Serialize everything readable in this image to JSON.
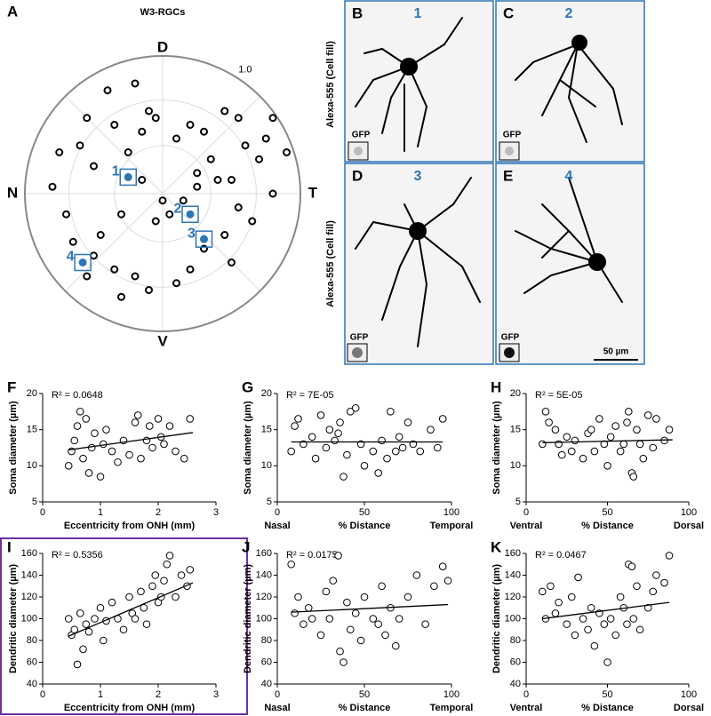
{
  "chart_data": [
    {
      "type": "polar_scatter",
      "panel": "A",
      "title": "W3-RGCs",
      "directions": {
        "top": "D",
        "bottom": "V",
        "left": "N",
        "right": "T"
      },
      "rgrid": [
        0.35,
        0.68
      ],
      "rticks": [
        {
          "value": 1,
          "label": "1.0"
        }
      ],
      "color": "#000000",
      "x": [
        -0.4,
        -0.2,
        -0.1,
        -0.55,
        -0.35,
        -0.6,
        -0.75,
        -0.5,
        -0.25,
        -0.15,
        -0.05,
        0.1,
        0.2,
        0.3,
        0.45,
        0.55,
        0.6,
        0.7,
        0.75,
        0.4,
        0.35,
        0.25,
        0.15,
        0.05,
        -0.05,
        -0.3,
        -0.45,
        -0.7,
        -0.8,
        -0.65,
        -0.5,
        -0.35,
        -0.2,
        -0.1,
        0.1,
        0.2,
        0.3,
        0.45,
        0.5,
        0.55,
        0.65,
        0.8,
        0.9,
        0.8,
        0.25,
        -0.15,
        0.0,
        -0.55,
        -0.3,
        0.5
      ],
      "y": [
        0.75,
        0.8,
        0.6,
        0.55,
        0.5,
        0.35,
        0.3,
        0.2,
        0.3,
        0.45,
        0.55,
        0.4,
        0.5,
        0.45,
        0.6,
        0.55,
        0.35,
        0.25,
        0.4,
        0.1,
        0.25,
        0.15,
        -0.05,
        -0.15,
        -0.2,
        -0.15,
        -0.3,
        -0.15,
        0.05,
        -0.35,
        -0.45,
        -0.55,
        -0.6,
        -0.7,
        -0.65,
        -0.55,
        -0.4,
        -0.3,
        -0.5,
        -0.1,
        -0.2,
        0.0,
        0.3,
        0.55,
        0.05,
        0.1,
        -0.05,
        -0.6,
        -0.75,
        0.1
      ],
      "highlighted": {
        "labels": [
          "1",
          "2",
          "3",
          "4"
        ],
        "x": [
          -0.25,
          0.2,
          0.3,
          -0.58
        ],
        "y": [
          0.12,
          -0.15,
          -0.33,
          -0.5
        ],
        "color": "#2e75b6"
      }
    },
    {
      "type": "scatter",
      "panel": "F",
      "annotation": "R² = 0.0648",
      "x_label": "Eccentricity from ONH (mm)",
      "y_label": "Soma diameter (µm)",
      "xlim": [
        0,
        3
      ],
      "xticks": [
        0,
        1,
        2,
        3
      ],
      "ylim": [
        5,
        20
      ],
      "yticks": [
        5,
        10,
        15,
        20
      ],
      "color": "#000000",
      "x": [
        0.45,
        0.5,
        0.55,
        0.6,
        0.65,
        0.7,
        0.75,
        0.8,
        0.85,
        0.9,
        1.0,
        1.05,
        1.1,
        1.2,
        1.3,
        1.4,
        1.5,
        1.6,
        1.65,
        1.7,
        1.8,
        1.85,
        1.9,
        2.0,
        2.05,
        2.1,
        2.2,
        2.3,
        2.45,
        2.55
      ],
      "values": [
        10,
        12,
        13.5,
        15.5,
        17.5,
        11,
        16.5,
        9,
        12.5,
        14.5,
        8.5,
        13,
        15,
        12,
        10.5,
        13.5,
        11.5,
        16,
        17,
        11,
        13.5,
        15.5,
        12.5,
        16.5,
        14,
        13,
        15.5,
        12,
        11,
        16.5
      ],
      "trend": {
        "x": [
          0.45,
          2.6
        ],
        "y": [
          12.2,
          14.6
        ]
      }
    },
    {
      "type": "scatter",
      "panel": "G",
      "annotation": "R² = 7E-05",
      "x_label": "% Distance",
      "x_end_labels": [
        "Nasal",
        "Temporal"
      ],
      "y_label": "Soma diameter (µm)",
      "xlim": [
        0,
        100
      ],
      "xticks": [
        0,
        50,
        100
      ],
      "ylim": [
        5,
        20
      ],
      "yticks": [
        5,
        10,
        15,
        20
      ],
      "color": "#000000",
      "x": [
        8,
        10,
        12,
        15,
        20,
        22,
        25,
        28,
        30,
        33,
        35,
        36,
        38,
        40,
        42,
        45,
        48,
        50,
        55,
        58,
        60,
        63,
        65,
        68,
        70,
        72,
        75,
        78,
        82,
        88,
        92,
        95
      ],
      "values": [
        12,
        15.5,
        16.5,
        13,
        14,
        11,
        17,
        12.5,
        15,
        13.5,
        14.5,
        16,
        8.5,
        11.5,
        17.5,
        18,
        13,
        10,
        12,
        9,
        13.5,
        11,
        17.5,
        12,
        14,
        12.5,
        16,
        13,
        12,
        15,
        12.5,
        16.5
      ],
      "trend": {
        "x": [
          8,
          95
        ],
        "y": [
          13.3,
          13.3
        ]
      }
    },
    {
      "type": "scatter",
      "panel": "H",
      "annotation": "R² = 5E-05",
      "x_label": "% Distance",
      "x_end_labels": [
        "Ventral",
        "Dorsal"
      ],
      "y_label": "Soma diameter (µm)",
      "xlim": [
        0,
        100
      ],
      "xticks": [
        0,
        50,
        100
      ],
      "ylim": [
        5,
        20
      ],
      "yticks": [
        5,
        10,
        15,
        20
      ],
      "color": "#000000",
      "x": [
        10,
        12,
        14,
        18,
        20,
        22,
        25,
        28,
        30,
        35,
        38,
        40,
        42,
        45,
        48,
        50,
        52,
        55,
        58,
        60,
        62,
        63,
        65,
        66,
        68,
        70,
        72,
        75,
        78,
        80,
        85,
        88
      ],
      "values": [
        13,
        17.5,
        16,
        15,
        13,
        11.5,
        14,
        12,
        13.5,
        11,
        14.5,
        15,
        12,
        16.5,
        13,
        10,
        14,
        15.5,
        12,
        13,
        16,
        17.5,
        9,
        8.5,
        15,
        13,
        11,
        17,
        12.5,
        16.5,
        13.5,
        15
      ],
      "trend": {
        "x": [
          10,
          90
        ],
        "y": [
          13.2,
          13.6
        ]
      }
    },
    {
      "type": "scatter",
      "panel": "I",
      "annotation": "R² = 0.5356",
      "x_label": "Eccentricity from ONH (mm)",
      "y_label": "Dendritic diameter (µm)",
      "xlim": [
        0,
        3
      ],
      "xticks": [
        0,
        1,
        2,
        3
      ],
      "ylim": [
        40,
        160
      ],
      "yticks": [
        40,
        60,
        80,
        100,
        120,
        140,
        160
      ],
      "color": "#000000",
      "x": [
        0.45,
        0.5,
        0.55,
        0.6,
        0.65,
        0.7,
        0.75,
        0.8,
        0.9,
        1.0,
        1.05,
        1.1,
        1.2,
        1.3,
        1.4,
        1.5,
        1.55,
        1.6,
        1.7,
        1.75,
        1.8,
        1.9,
        1.95,
        2.0,
        2.05,
        2.1,
        2.15,
        2.2,
        2.3,
        2.4,
        2.5,
        2.55
      ],
      "values": [
        100,
        85,
        90,
        58,
        105,
        72,
        95,
        88,
        100,
        110,
        80,
        98,
        115,
        100,
        90,
        120,
        105,
        100,
        125,
        110,
        95,
        130,
        140,
        115,
        120,
        135,
        150,
        158,
        120,
        140,
        130,
        145
      ],
      "trend": {
        "x": [
          0.45,
          2.6
        ],
        "y": [
          84,
          133
        ]
      }
    },
    {
      "type": "scatter",
      "panel": "J",
      "annotation": "R² = 0.0175",
      "x_label": "% Distance",
      "x_end_labels": [
        "Nasal",
        "Temporal"
      ],
      "y_label": "Dendritic diameter (µm)",
      "xlim": [
        0,
        100
      ],
      "xticks": [
        0,
        50,
        100
      ],
      "ylim": [
        40,
        160
      ],
      "yticks": [
        40,
        60,
        80,
        100,
        120,
        140,
        160
      ],
      "color": "#000000",
      "x": [
        8,
        10,
        12,
        15,
        18,
        20,
        25,
        28,
        30,
        32,
        35,
        36,
        38,
        40,
        42,
        45,
        48,
        50,
        55,
        58,
        60,
        62,
        65,
        68,
        70,
        75,
        80,
        85,
        90,
        95,
        98
      ],
      "values": [
        150,
        105,
        120,
        95,
        110,
        100,
        85,
        125,
        100,
        135,
        158,
        70,
        60,
        115,
        90,
        105,
        80,
        120,
        100,
        95,
        130,
        85,
        110,
        75,
        100,
        120,
        140,
        95,
        130,
        148,
        135
      ],
      "trend": {
        "x": [
          8,
          98
        ],
        "y": [
          106,
          113
        ]
      }
    },
    {
      "type": "scatter",
      "panel": "K",
      "annotation": "R² = 0.0467",
      "x_label": "% Distance",
      "x_end_labels": [
        "Ventral",
        "Dorsal"
      ],
      "y_label": "Dendritic diameter (µm)",
      "xlim": [
        0,
        100
      ],
      "xticks": [
        0,
        50,
        100
      ],
      "ylim": [
        40,
        160
      ],
      "yticks": [
        40,
        60,
        80,
        100,
        120,
        140,
        160
      ],
      "color": "#000000",
      "x": [
        10,
        12,
        15,
        18,
        20,
        25,
        28,
        30,
        32,
        35,
        38,
        40,
        42,
        45,
        48,
        50,
        52,
        55,
        58,
        60,
        62,
        63,
        65,
        66,
        68,
        70,
        75,
        78,
        80,
        85,
        88
      ],
      "values": [
        125,
        100,
        130,
        105,
        115,
        95,
        120,
        85,
        138,
        100,
        90,
        110,
        75,
        105,
        95,
        60,
        100,
        85,
        120,
        110,
        95,
        150,
        148,
        100,
        130,
        90,
        110,
        125,
        140,
        133,
        158
      ],
      "trend": {
        "x": [
          10,
          88
        ],
        "y": [
          100,
          115
        ]
      }
    }
  ],
  "images": {
    "y_labels": [
      "Alexa-555 (Cell fill)",
      "Alexa-555 (Cell fill)"
    ],
    "scale_bar": "50 µm",
    "panels": [
      {
        "panel": "B",
        "number": "1",
        "inset": "GFP"
      },
      {
        "panel": "C",
        "number": "2",
        "inset": "GFP"
      },
      {
        "panel": "D",
        "number": "3",
        "inset": "GFP"
      },
      {
        "panel": "E",
        "number": "4",
        "inset": "GFP"
      }
    ]
  }
}
